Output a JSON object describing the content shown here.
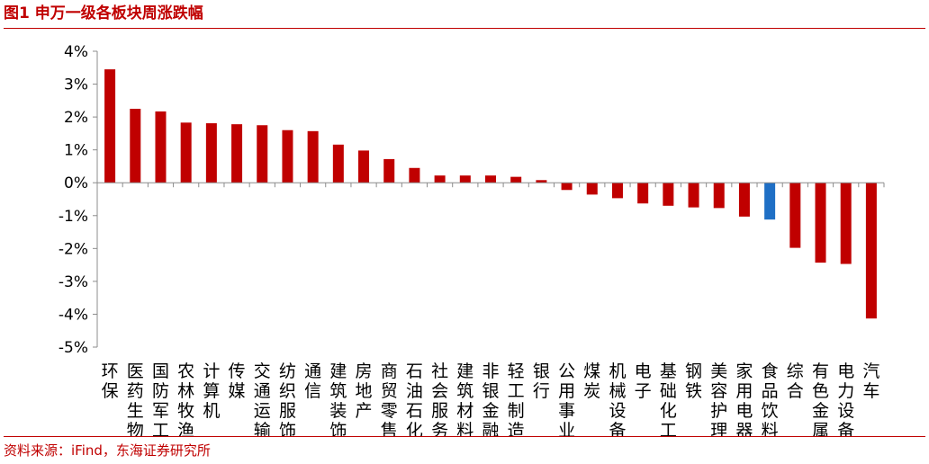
{
  "figure": {
    "title": "图1 申万一级各板块周涨跌幅",
    "source": "资料来源：iFind，东海证券研究所"
  },
  "colors": {
    "accent": "#c00000",
    "bar_default": "#c00000",
    "bar_highlight": "#1f6fc5"
  },
  "chart_data": {
    "type": "bar",
    "title": "",
    "xlabel": "",
    "ylabel": "",
    "ylim": [
      -5,
      4
    ],
    "yticks": [
      4,
      3,
      2,
      1,
      0,
      -1,
      -2,
      -3,
      -4,
      -5
    ],
    "ytick_labels": [
      "4%",
      "3%",
      "2%",
      "1%",
      "0%",
      "-1%",
      "-2%",
      "-3%",
      "-4%",
      "-5%"
    ],
    "grid": false,
    "legend": "none",
    "categories": [
      "环保",
      "医药生物",
      "国防军工",
      "农林牧渔",
      "计算机",
      "传媒",
      "交通运输",
      "纺织服饰",
      "通信",
      "建筑装饰",
      "房地产",
      "商贸零售",
      "石油石化",
      "社会服务",
      "建筑材料",
      "非银金融",
      "轻工制造",
      "银行",
      "公用事业",
      "煤炭",
      "机械设备",
      "电子",
      "基础化工",
      "钢铁",
      "美容护理",
      "家用电器",
      "食品饮料",
      "综合",
      "有色金属",
      "电力设备",
      "汽车"
    ],
    "values": [
      3.45,
      2.25,
      2.17,
      1.83,
      1.81,
      1.78,
      1.75,
      1.6,
      1.57,
      1.16,
      0.98,
      0.72,
      0.45,
      0.22,
      0.22,
      0.22,
      0.18,
      0.08,
      -0.22,
      -0.36,
      -0.47,
      -0.63,
      -0.7,
      -0.75,
      -0.77,
      -1.03,
      -1.12,
      -1.98,
      -2.43,
      -2.47,
      -4.13
    ],
    "highlight_index": 26
  }
}
